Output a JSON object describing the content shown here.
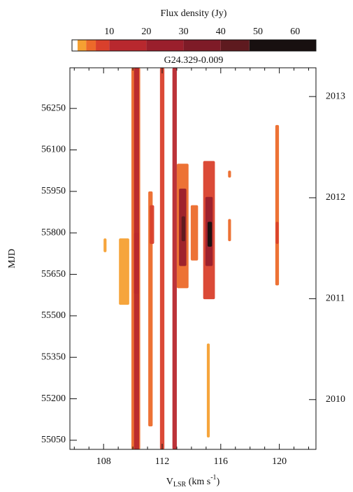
{
  "chart_data": {
    "type": "heatmap",
    "title": "G24.329-0.009",
    "colorbar": {
      "label": "Flux density (Jy)",
      "lim": [
        0,
        65.6
      ],
      "ticks": [
        10,
        20,
        30,
        40,
        50,
        60
      ],
      "levels": [
        0,
        1.5,
        3.8,
        6.4,
        10,
        20,
        30,
        40,
        47.7,
        65.6
      ],
      "colors": [
        "#ffffff",
        "#f5a032",
        "#ec6a2a",
        "#d9402c",
        "#b8282e",
        "#9a1f2c",
        "#7e1b27",
        "#5e1a1f",
        "#181010"
      ]
    },
    "x_label": {
      "main": "V",
      "sub": "LSR",
      "unit": " (km s",
      "sup": "-1",
      "end": ")"
    },
    "y_label": "MJD",
    "xlim": [
      105.7,
      122.5
    ],
    "xticks": [
      108,
      112,
      116,
      120
    ],
    "xminor": [
      106,
      107,
      109,
      110,
      111,
      113,
      114,
      115,
      117,
      118,
      119,
      121,
      122
    ],
    "ylim": [
      55017,
      56397
    ],
    "yticks": [
      55050,
      55200,
      55350,
      55500,
      55650,
      55800,
      55950,
      56100,
      56250
    ],
    "y2lim": [
      55017,
      56397
    ],
    "y2ticks": [
      {
        "value": 55197,
        "label": "2010"
      },
      {
        "value": 55562,
        "label": "2011"
      },
      {
        "value": 55927,
        "label": "2012"
      },
      {
        "value": 56293,
        "label": "2013"
      }
    ],
    "features": [
      {
        "v": 109.4,
        "width": 0.7,
        "mjd": [
          55540,
          55780
        ],
        "flux": 3
      },
      {
        "v": 108.1,
        "width": 0.2,
        "mjd": [
          55730,
          55780
        ],
        "flux": 2.5
      },
      {
        "v": 110.2,
        "width": 0.6,
        "mjd": [
          55017,
          56397
        ],
        "flux": 5
      },
      {
        "v": 110.25,
        "width": 0.35,
        "mjd": [
          55017,
          56397
        ],
        "flux": 14
      },
      {
        "v": 110.25,
        "width": 0.35,
        "mjd": [
          55580,
          55800
        ],
        "flux": 18
      },
      {
        "v": 111.2,
        "width": 0.3,
        "mjd": [
          55100,
          55950
        ],
        "flux": 4
      },
      {
        "v": 111.3,
        "width": 0.3,
        "mjd": [
          55760,
          55900
        ],
        "flux": 8
      },
      {
        "v": 112.0,
        "width": 0.3,
        "mjd": [
          55017,
          56397
        ],
        "flux": 9
      },
      {
        "v": 112.85,
        "width": 0.3,
        "mjd": [
          55017,
          56397
        ],
        "flux": 12
      },
      {
        "v": 113.4,
        "width": 0.8,
        "mjd": [
          55600,
          56050
        ],
        "flux": 6
      },
      {
        "v": 113.4,
        "width": 0.5,
        "mjd": [
          55680,
          55960
        ],
        "flux": 24
      },
      {
        "v": 113.45,
        "width": 0.25,
        "mjd": [
          55770,
          55860
        ],
        "flux": 42
      },
      {
        "v": 114.2,
        "width": 0.5,
        "mjd": [
          55700,
          55900
        ],
        "flux": 4
      },
      {
        "v": 115.2,
        "width": 0.8,
        "mjd": [
          55560,
          56060
        ],
        "flux": 7
      },
      {
        "v": 115.2,
        "width": 0.5,
        "mjd": [
          55680,
          55930
        ],
        "flux": 28
      },
      {
        "v": 115.25,
        "width": 0.3,
        "mjd": [
          55750,
          55840
        ],
        "flux": 52
      },
      {
        "v": 115.15,
        "width": 0.2,
        "mjd": [
          55060,
          55400
        ],
        "flux": 3
      },
      {
        "v": 116.6,
        "width": 0.2,
        "mjd": [
          55770,
          55850
        ],
        "flux": 4
      },
      {
        "v": 116.6,
        "width": 0.2,
        "mjd": [
          56000,
          56025
        ],
        "flux": 4
      },
      {
        "v": 119.85,
        "width": 0.25,
        "mjd": [
          55610,
          56190
        ],
        "flux": 4
      },
      {
        "v": 119.85,
        "width": 0.2,
        "mjd": [
          55760,
          55840
        ],
        "flux": 9
      }
    ]
  }
}
